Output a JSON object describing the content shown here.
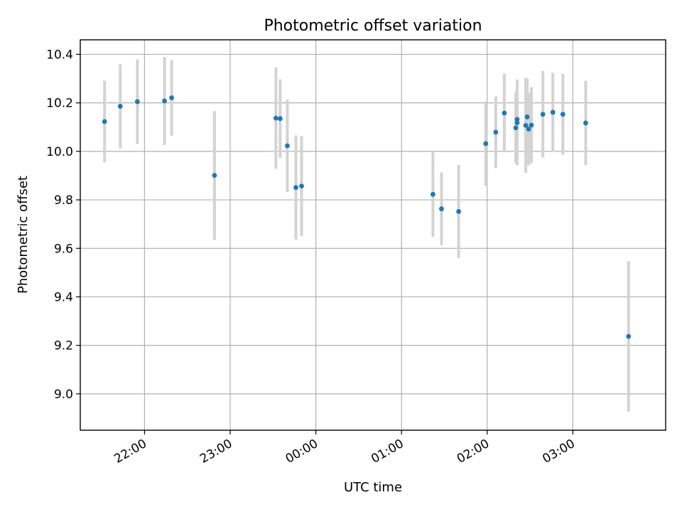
{
  "chart_data": {
    "type": "scatter",
    "title": "Photometric offset variation",
    "xlabel": "UTC time",
    "ylabel": "Photometric offset",
    "xlim": [
      "21:15",
      "04:05"
    ],
    "ylim": [
      8.85,
      10.46
    ],
    "grid": true,
    "x_ticks": [
      "22:00",
      "23:00",
      "00:00",
      "01:00",
      "02:00",
      "03:00"
    ],
    "y_ticks": [
      "9.0",
      "9.2",
      "9.4",
      "9.6",
      "9.8",
      "10.0",
      "10.2",
      "10.4"
    ],
    "y_tick_values": [
      9.0,
      9.2,
      9.4,
      9.6,
      9.8,
      10.0,
      10.2,
      10.4
    ],
    "colors": {
      "points": "#1f77b4",
      "errorbars": "#d3d3d3"
    },
    "points": [
      {
        "x": "21:32",
        "y": 10.123,
        "err": 0.168
      },
      {
        "x": "21:43",
        "y": 10.186,
        "err": 0.174
      },
      {
        "x": "21:55",
        "y": 10.205,
        "err": 0.174
      },
      {
        "x": "22:14",
        "y": 10.208,
        "err": 0.182
      },
      {
        "x": "22:19",
        "y": 10.221,
        "err": 0.156
      },
      {
        "x": "22:49",
        "y": 9.901,
        "err": 0.265
      },
      {
        "x": "23:32",
        "y": 10.137,
        "err": 0.209
      },
      {
        "x": "23:35",
        "y": 10.135,
        "err": 0.162
      },
      {
        "x": "23:40",
        "y": 10.023,
        "err": 0.191
      },
      {
        "x": "23:46",
        "y": 9.851,
        "err": 0.215
      },
      {
        "x": "23:50",
        "y": 9.857,
        "err": 0.206
      },
      {
        "x": "01:22",
        "y": 9.823,
        "err": 0.176
      },
      {
        "x": "01:28",
        "y": 9.763,
        "err": 0.15
      },
      {
        "x": "01:40",
        "y": 9.752,
        "err": 0.192
      },
      {
        "x": "01:59",
        "y": 10.032,
        "err": 0.174
      },
      {
        "x": "02:06",
        "y": 10.079,
        "err": 0.148
      },
      {
        "x": "02:12",
        "y": 10.158,
        "err": 0.162
      },
      {
        "x": "02:20",
        "y": 10.097,
        "err": 0.146
      },
      {
        "x": "02:21",
        "y": 10.118,
        "err": 0.175
      },
      {
        "x": "02:21",
        "y": 10.132,
        "err": 0.165
      },
      {
        "x": "02:27",
        "y": 10.107,
        "err": 0.196
      },
      {
        "x": "02:28",
        "y": 10.142,
        "err": 0.158
      },
      {
        "x": "02:29",
        "y": 10.092,
        "err": 0.15
      },
      {
        "x": "02:31",
        "y": 10.108,
        "err": 0.157
      },
      {
        "x": "02:39",
        "y": 10.153,
        "err": 0.178
      },
      {
        "x": "02:46",
        "y": 10.161,
        "err": 0.163
      },
      {
        "x": "02:53",
        "y": 10.153,
        "err": 0.167
      },
      {
        "x": "03:09",
        "y": 10.117,
        "err": 0.174
      },
      {
        "x": "03:39",
        "y": 9.237,
        "err": 0.31
      }
    ]
  }
}
